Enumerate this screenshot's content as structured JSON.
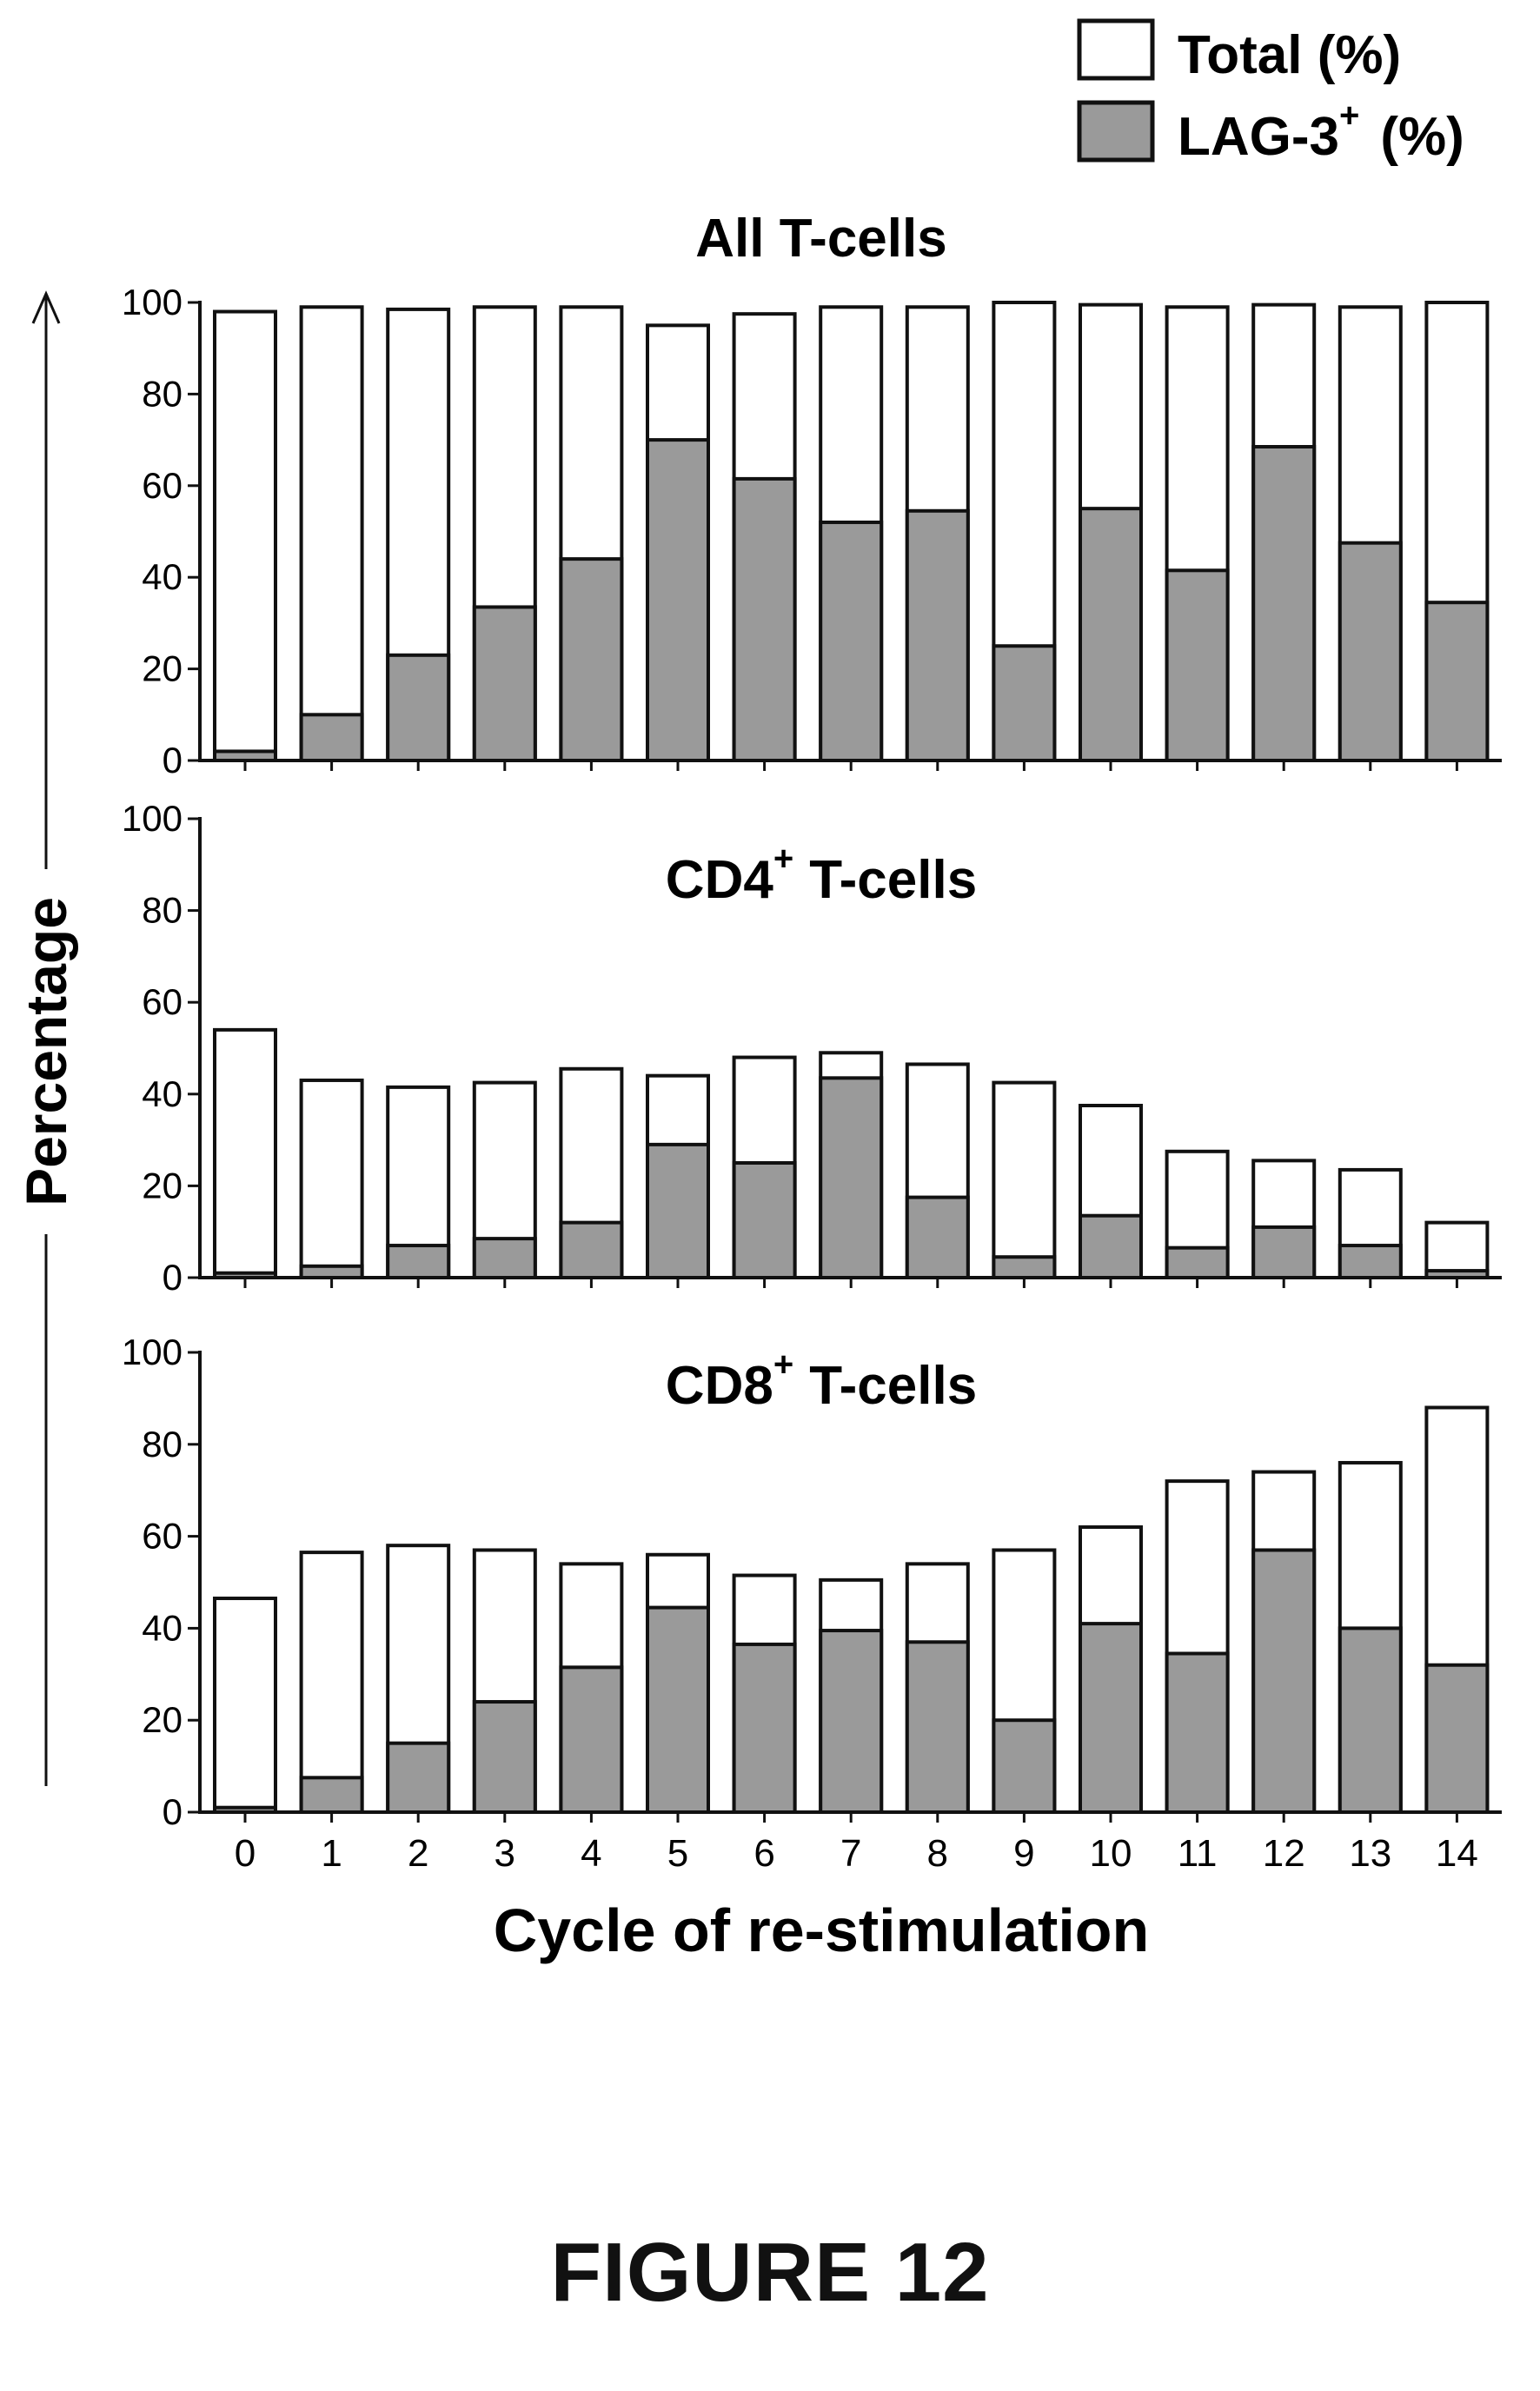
{
  "legend": {
    "total_label": "Total (%)",
    "lag3_label_base": "LAG-3",
    "lag3_label_sup": "+",
    "lag3_label_unit": "(%)"
  },
  "colors": {
    "total": "#ffffff",
    "lag3": "#9a9a9a",
    "stroke": "#111111"
  },
  "ylabel": "Percentage",
  "xlabel": "Cycle of re-stimulation",
  "caption": "FIGURE 12",
  "chart_data": [
    {
      "type": "bar",
      "title": "All T-cells",
      "title_base": "All T-cells",
      "title_sup": "",
      "title_rest": "",
      "categories": [
        "0",
        "1",
        "2",
        "3",
        "4",
        "5",
        "6",
        "7",
        "8",
        "9",
        "10",
        "11",
        "12",
        "13",
        "14"
      ],
      "series": [
        {
          "name": "Total (%)",
          "values": [
            98,
            99,
            98.5,
            99,
            99,
            95,
            97.5,
            99,
            99,
            100,
            99.5,
            99,
            99.5,
            99,
            100
          ]
        },
        {
          "name": "LAG-3+ (%)",
          "values": [
            2,
            10,
            23,
            33.5,
            44,
            70,
            61.5,
            52,
            54.5,
            25,
            55,
            41.5,
            68.5,
            47.5,
            34.5
          ]
        }
      ],
      "ylim": [
        0,
        100
      ],
      "yticks": [
        0,
        20,
        40,
        60,
        80,
        100
      ],
      "grid": false
    },
    {
      "type": "bar",
      "title": "CD4+ T-cells",
      "title_base": "CD4",
      "title_sup": "+",
      "title_rest": "T-cells",
      "categories": [
        "0",
        "1",
        "2",
        "3",
        "4",
        "5",
        "6",
        "7",
        "8",
        "9",
        "10",
        "11",
        "12",
        "13",
        "14"
      ],
      "series": [
        {
          "name": "Total (%)",
          "values": [
            54,
            43,
            41.5,
            42.5,
            45.5,
            44,
            48,
            49,
            46.5,
            42.5,
            37.5,
            27.5,
            25.5,
            23.5,
            12
          ]
        },
        {
          "name": "LAG-3+ (%)",
          "values": [
            1,
            2.5,
            7,
            8.5,
            12,
            29,
            25,
            43.5,
            17.5,
            4.5,
            13.5,
            6.5,
            11,
            7,
            1.5
          ]
        }
      ],
      "ylim": [
        0,
        100
      ],
      "yticks": [
        0,
        20,
        40,
        60,
        80,
        100
      ],
      "grid": false
    },
    {
      "type": "bar",
      "title": "CD8+ T-cells",
      "title_base": "CD8",
      "title_sup": "+",
      "title_rest": "T-cells",
      "categories": [
        "0",
        "1",
        "2",
        "3",
        "4",
        "5",
        "6",
        "7",
        "8",
        "9",
        "10",
        "11",
        "12",
        "13",
        "14"
      ],
      "series": [
        {
          "name": "Total (%)",
          "values": [
            46.5,
            56.5,
            58,
            57,
            54,
            56,
            51.5,
            50.5,
            54,
            57,
            62,
            72,
            74,
            76,
            88
          ]
        },
        {
          "name": "LAG-3+ (%)",
          "values": [
            1,
            7.5,
            15,
            24,
            31.5,
            44.5,
            36.5,
            39.5,
            37,
            20,
            41,
            34.5,
            57,
            40,
            32
          ]
        }
      ],
      "ylim": [
        0,
        100
      ],
      "yticks": [
        0,
        20,
        40,
        60,
        80,
        100
      ],
      "grid": false
    }
  ]
}
